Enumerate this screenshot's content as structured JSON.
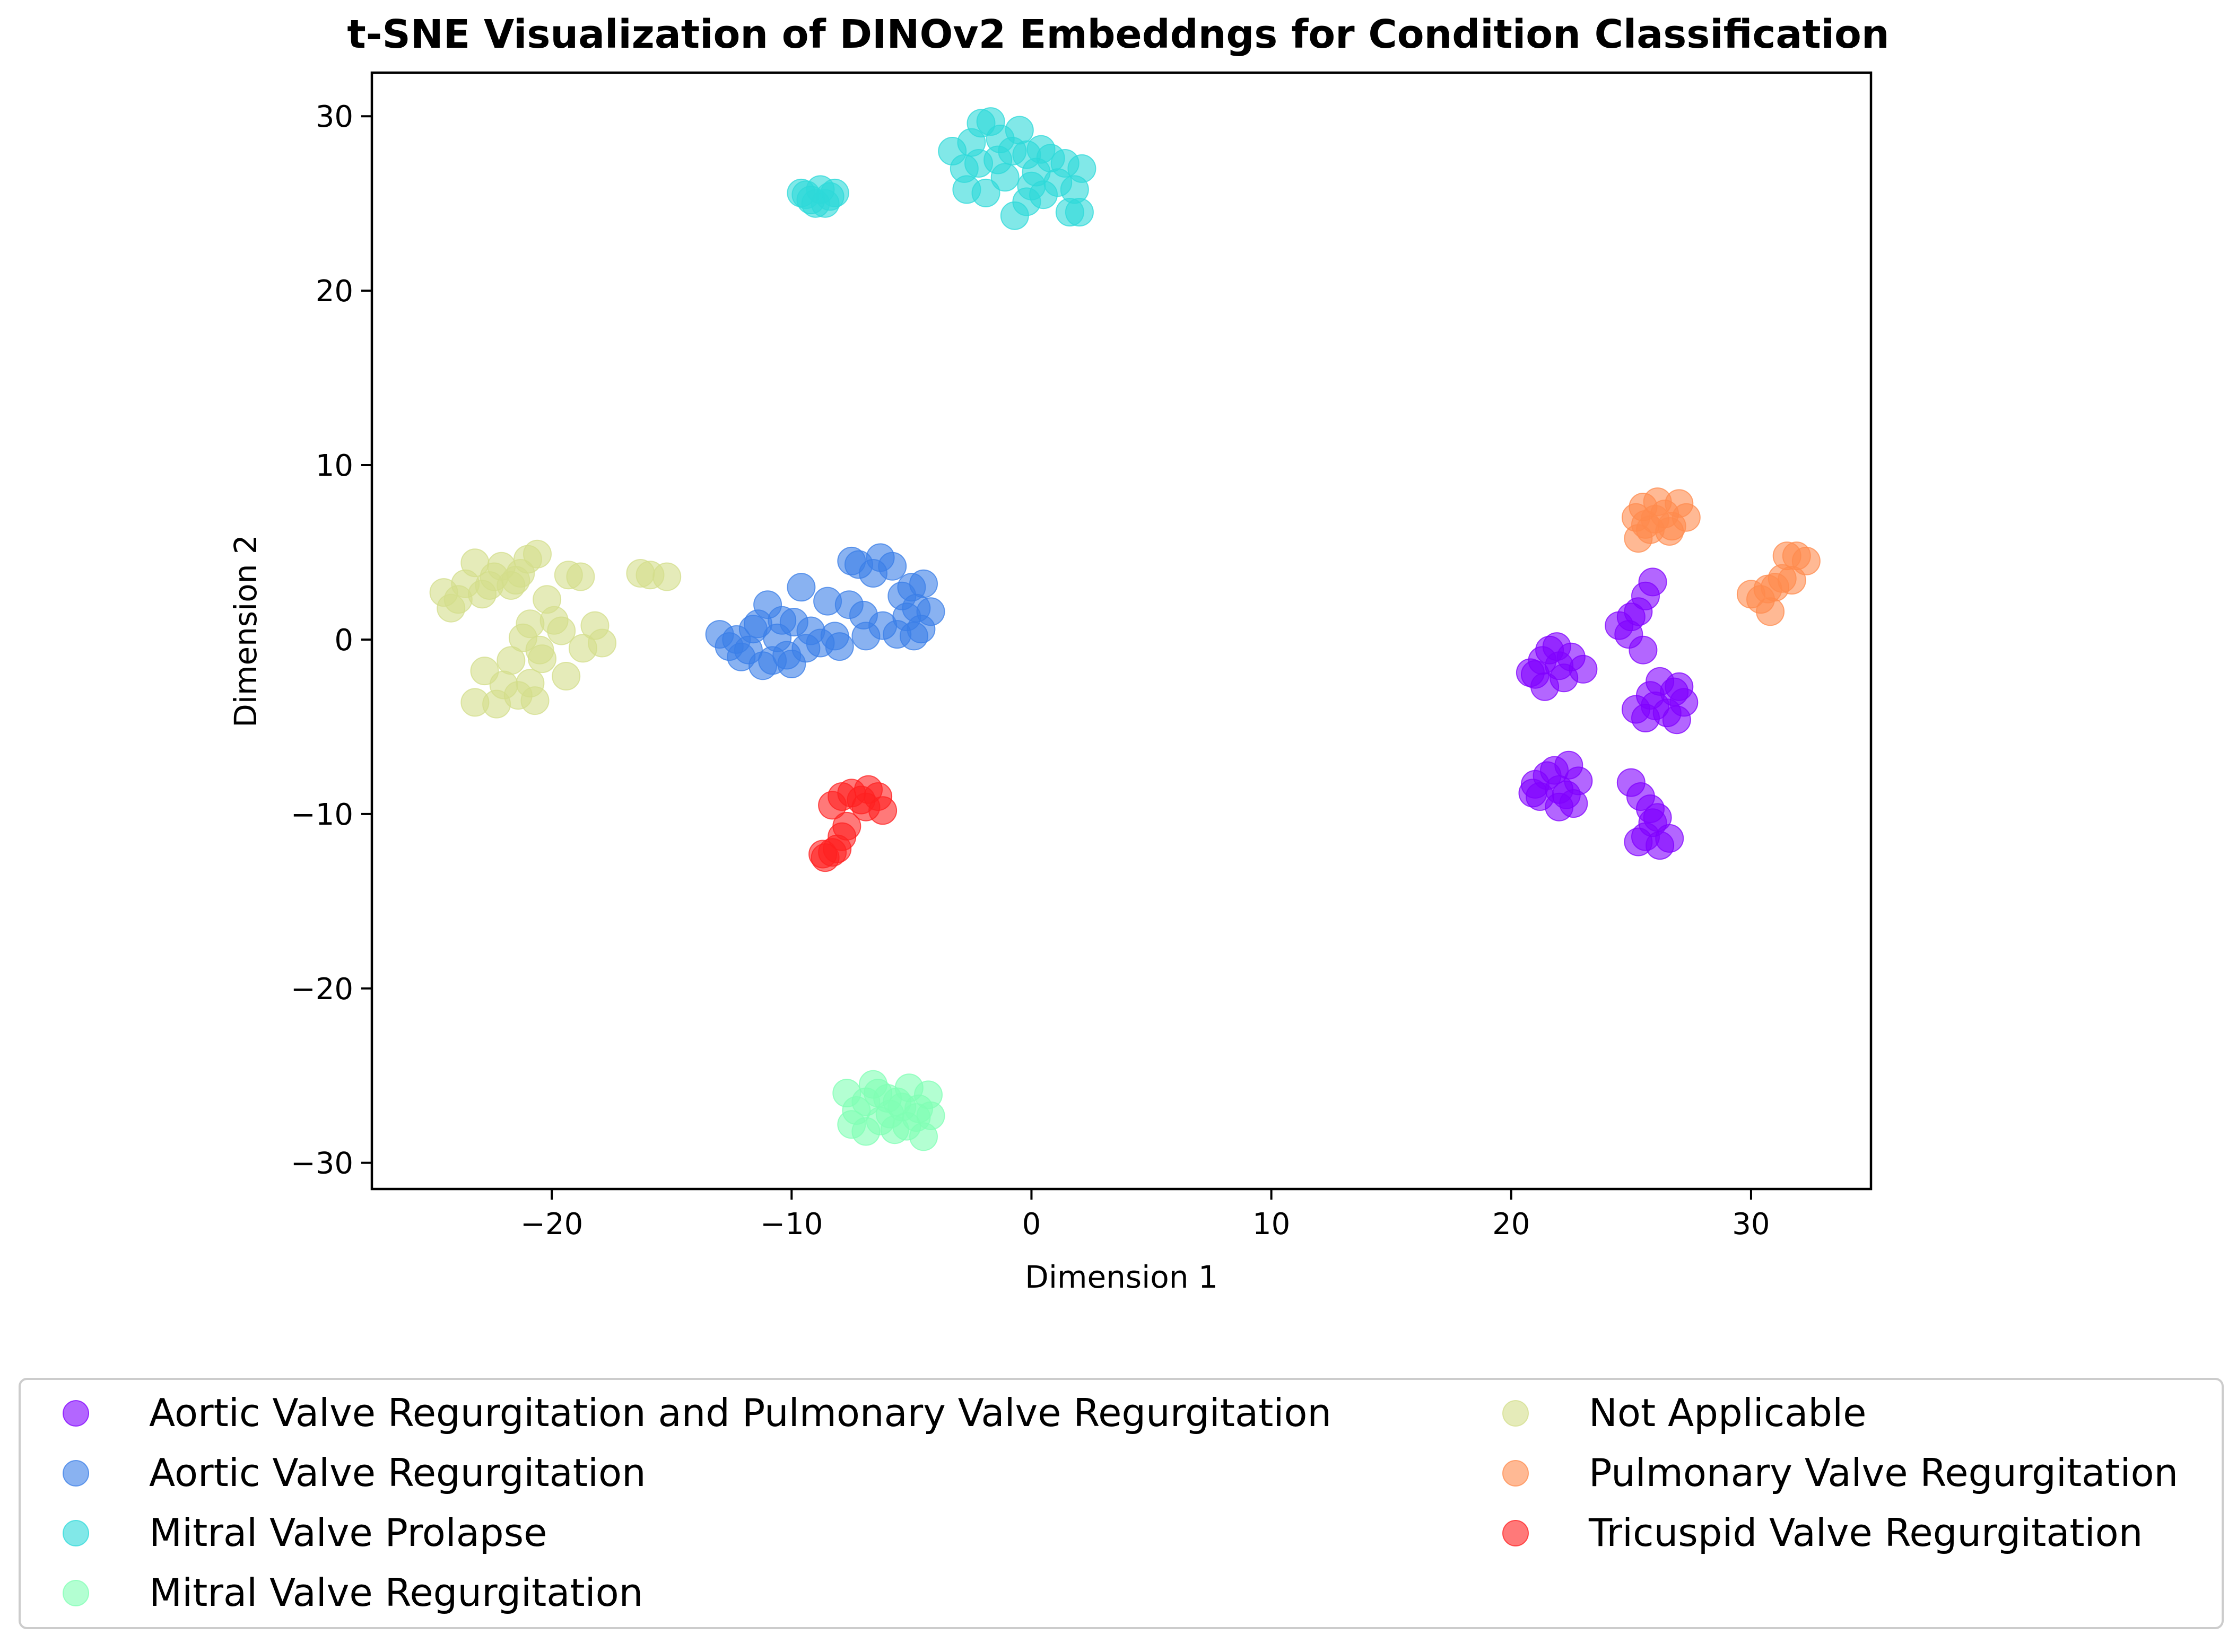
{
  "chart_data": {
    "type": "scatter",
    "title": "t-SNE Visualization of DINOv2 Embeddngs for Condition Classification",
    "xlabel": "Dimension 1",
    "ylabel": "Dimension 2",
    "xlim": [
      -27.5,
      35
    ],
    "ylim": [
      -31.5,
      32.5
    ],
    "xticks": [
      -20,
      -10,
      0,
      10,
      20,
      30
    ],
    "yticks": [
      -30,
      -20,
      -10,
      0,
      10,
      20,
      30
    ],
    "xtick_labels": [
      "−20",
      "−10",
      "0",
      "10",
      "20",
      "30"
    ],
    "ytick_labels": [
      "−30",
      "−20",
      "−10",
      "0",
      "10",
      "20",
      "30"
    ],
    "grid": false,
    "legend_position": "bottom",
    "series": [
      {
        "name": "Aortic Valve Regurgitation and Pulmonary Valve Regurgitation",
        "color": "#8000ff",
        "points": [
          [
            21.0,
            -2.0
          ],
          [
            21.3,
            -1.2
          ],
          [
            21.6,
            -0.6
          ],
          [
            22.0,
            -1.5
          ],
          [
            21.4,
            -2.7
          ],
          [
            22.2,
            -2.2
          ],
          [
            22.5,
            -1.0
          ],
          [
            23.0,
            -1.7
          ],
          [
            20.8,
            -1.9
          ],
          [
            21.9,
            -0.4
          ],
          [
            24.5,
            0.8
          ],
          [
            25.0,
            1.3
          ],
          [
            25.3,
            1.6
          ],
          [
            25.6,
            2.5
          ],
          [
            25.9,
            3.3
          ],
          [
            24.9,
            0.3
          ],
          [
            25.5,
            -0.6
          ],
          [
            25.2,
            -4.0
          ],
          [
            25.8,
            -3.2
          ],
          [
            26.2,
            -2.4
          ],
          [
            26.8,
            -3.0
          ],
          [
            27.2,
            -3.6
          ],
          [
            26.5,
            -4.2
          ],
          [
            25.6,
            -4.5
          ],
          [
            26.9,
            -4.6
          ],
          [
            26.0,
            -3.8
          ],
          [
            27.0,
            -2.7
          ],
          [
            21.0,
            -8.3
          ],
          [
            21.5,
            -7.8
          ],
          [
            22.0,
            -8.6
          ],
          [
            22.4,
            -7.2
          ],
          [
            22.8,
            -8.1
          ],
          [
            21.2,
            -9.0
          ],
          [
            22.0,
            -9.6
          ],
          [
            22.6,
            -9.4
          ],
          [
            21.8,
            -7.5
          ],
          [
            20.9,
            -8.8
          ],
          [
            22.3,
            -8.9
          ],
          [
            25.0,
            -8.2
          ],
          [
            25.4,
            -9.0
          ],
          [
            25.8,
            -9.7
          ],
          [
            26.1,
            -10.2
          ],
          [
            25.6,
            -11.3
          ],
          [
            26.2,
            -11.8
          ],
          [
            26.6,
            -11.4
          ],
          [
            25.3,
            -11.6
          ],
          [
            25.9,
            -10.5
          ]
        ]
      },
      {
        "name": "Aortic Valve Regurgitation",
        "color": "#3a7ee7",
        "points": [
          [
            -13.0,
            0.3
          ],
          [
            -12.6,
            -0.4
          ],
          [
            -12.1,
            -1.0
          ],
          [
            -11.6,
            0.6
          ],
          [
            -11.2,
            -1.5
          ],
          [
            -11.0,
            2.0
          ],
          [
            -10.6,
            0.1
          ],
          [
            -10.2,
            -0.9
          ],
          [
            -9.9,
            1.0
          ],
          [
            -9.6,
            3.0
          ],
          [
            -9.2,
            0.5
          ],
          [
            -8.8,
            -0.2
          ],
          [
            -8.5,
            2.2
          ],
          [
            -12.3,
            0.0
          ],
          [
            -11.8,
            -0.6
          ],
          [
            -10.8,
            -1.2
          ],
          [
            -10.0,
            -1.4
          ],
          [
            -9.4,
            -0.5
          ],
          [
            -8.2,
            0.2
          ],
          [
            -8.0,
            -0.4
          ],
          [
            -7.6,
            2.0
          ],
          [
            -11.4,
            0.9
          ],
          [
            -10.4,
            1.1
          ],
          [
            -7.5,
            4.5
          ],
          [
            -7.2,
            4.3
          ],
          [
            -6.3,
            4.7
          ],
          [
            -5.8,
            4.2
          ],
          [
            -6.6,
            3.8
          ],
          [
            -5.4,
            2.5
          ],
          [
            -5.0,
            3.0
          ],
          [
            -4.5,
            3.2
          ],
          [
            -4.8,
            1.8
          ],
          [
            -4.2,
            1.6
          ],
          [
            -4.6,
            0.6
          ],
          [
            -5.2,
            1.3
          ],
          [
            -5.6,
            0.3
          ],
          [
            -6.2,
            0.8
          ],
          [
            -6.9,
            0.2
          ],
          [
            -7.0,
            1.4
          ],
          [
            -4.9,
            0.2
          ]
        ]
      },
      {
        "name": "Mitral Valve Prolapse",
        "color": "#2dd9d9",
        "points": [
          [
            -9.6,
            25.6
          ],
          [
            -9.2,
            25.2
          ],
          [
            -8.8,
            25.8
          ],
          [
            -8.4,
            25.4
          ],
          [
            -9.0,
            25.0
          ],
          [
            -8.6,
            25.0
          ],
          [
            -9.4,
            25.5
          ],
          [
            -8.2,
            25.6
          ],
          [
            -3.3,
            28.0
          ],
          [
            -2.8,
            27.0
          ],
          [
            -2.5,
            28.5
          ],
          [
            -2.1,
            29.6
          ],
          [
            -1.7,
            29.7
          ],
          [
            -1.4,
            27.5
          ],
          [
            -1.1,
            26.5
          ],
          [
            -0.8,
            28.0
          ],
          [
            -0.5,
            29.2
          ],
          [
            -0.2,
            27.8
          ],
          [
            0.2,
            26.8
          ],
          [
            0.5,
            25.5
          ],
          [
            0.8,
            27.6
          ],
          [
            1.1,
            26.2
          ],
          [
            1.4,
            27.3
          ],
          [
            1.8,
            25.8
          ],
          [
            2.1,
            27.0
          ],
          [
            2.0,
            24.5
          ],
          [
            -2.7,
            25.8
          ],
          [
            -1.9,
            25.6
          ],
          [
            -0.7,
            24.3
          ],
          [
            -1.3,
            28.7
          ],
          [
            0.0,
            26.0
          ],
          [
            0.4,
            28.1
          ],
          [
            -0.2,
            25.1
          ],
          [
            1.6,
            24.5
          ],
          [
            -2.2,
            27.3
          ]
        ]
      },
      {
        "name": "Mitral Valve Regurgitation",
        "color": "#80ffb4",
        "points": [
          [
            -7.7,
            -26.0
          ],
          [
            -7.3,
            -27.0
          ],
          [
            -6.9,
            -26.5
          ],
          [
            -6.6,
            -25.5
          ],
          [
            -6.3,
            -27.6
          ],
          [
            -6.0,
            -26.3
          ],
          [
            -5.7,
            -28.1
          ],
          [
            -5.4,
            -26.8
          ],
          [
            -5.1,
            -25.7
          ],
          [
            -4.8,
            -27.4
          ],
          [
            -4.5,
            -28.5
          ],
          [
            -4.3,
            -26.1
          ],
          [
            -4.2,
            -27.3
          ],
          [
            -7.5,
            -27.8
          ],
          [
            -6.9,
            -28.2
          ],
          [
            -5.9,
            -27.2
          ],
          [
            -5.2,
            -27.9
          ],
          [
            -4.7,
            -26.9
          ],
          [
            -6.4,
            -26.0
          ],
          [
            -5.6,
            -26.5
          ]
        ]
      },
      {
        "name": "Not Applicable",
        "color": "#d3dd8b",
        "points": [
          [
            -24.5,
            2.7
          ],
          [
            -24.2,
            1.8
          ],
          [
            -23.6,
            3.2
          ],
          [
            -23.2,
            4.4
          ],
          [
            -22.9,
            2.6
          ],
          [
            -22.4,
            3.6
          ],
          [
            -22.1,
            4.2
          ],
          [
            -21.7,
            3.1
          ],
          [
            -21.3,
            3.8
          ],
          [
            -21.0,
            4.6
          ],
          [
            -20.6,
            4.9
          ],
          [
            -20.2,
            2.3
          ],
          [
            -23.9,
            2.3
          ],
          [
            -22.6,
            3.1
          ],
          [
            -21.5,
            3.4
          ],
          [
            -19.9,
            1.1
          ],
          [
            -19.6,
            0.5
          ],
          [
            -20.9,
            0.9
          ],
          [
            -21.2,
            0.1
          ],
          [
            -20.5,
            -0.6
          ],
          [
            -19.3,
            3.7
          ],
          [
            -18.8,
            3.6
          ],
          [
            -18.2,
            0.8
          ],
          [
            -17.9,
            -0.2
          ],
          [
            -18.7,
            -0.5
          ],
          [
            -19.4,
            -2.1
          ],
          [
            -20.4,
            -1.1
          ],
          [
            -20.9,
            -2.5
          ],
          [
            -21.4,
            -3.2
          ],
          [
            -22.0,
            -2.6
          ],
          [
            -22.3,
            -3.7
          ],
          [
            -23.2,
            -3.6
          ],
          [
            -22.8,
            -1.8
          ],
          [
            -21.7,
            -1.2
          ],
          [
            -20.7,
            -3.5
          ],
          [
            -16.3,
            3.8
          ],
          [
            -15.9,
            3.7
          ],
          [
            -15.2,
            3.6
          ]
        ]
      },
      {
        "name": "Pulmonary Valve Regurgitation",
        "color": "#ff8b4d",
        "points": [
          [
            25.2,
            7.0
          ],
          [
            25.5,
            7.6
          ],
          [
            25.8,
            6.3
          ],
          [
            26.1,
            7.9
          ],
          [
            26.4,
            7.2
          ],
          [
            26.7,
            6.5
          ],
          [
            27.0,
            7.8
          ],
          [
            27.3,
            7.0
          ],
          [
            25.3,
            5.8
          ],
          [
            26.0,
            6.9
          ],
          [
            26.6,
            6.2
          ],
          [
            25.6,
            6.6
          ],
          [
            30.0,
            2.6
          ],
          [
            30.4,
            2.3
          ],
          [
            30.8,
            1.6
          ],
          [
            31.0,
            3.0
          ],
          [
            31.3,
            3.5
          ],
          [
            31.5,
            4.8
          ],
          [
            31.9,
            4.8
          ],
          [
            32.3,
            4.5
          ],
          [
            31.7,
            3.4
          ],
          [
            30.7,
            2.9
          ]
        ]
      },
      {
        "name": "Tricuspid Valve Regurgitation",
        "color": "#ff2020",
        "points": [
          [
            -8.3,
            -9.5
          ],
          [
            -7.9,
            -9.0
          ],
          [
            -7.5,
            -8.8
          ],
          [
            -7.1,
            -9.2
          ],
          [
            -6.8,
            -8.6
          ],
          [
            -6.4,
            -9.0
          ],
          [
            -6.2,
            -9.8
          ],
          [
            -6.9,
            -9.6
          ],
          [
            -7.7,
            -10.7
          ],
          [
            -7.9,
            -11.3
          ],
          [
            -8.3,
            -12.2
          ],
          [
            -8.6,
            -12.5
          ],
          [
            -8.1,
            -12.0
          ],
          [
            -8.7,
            -12.3
          ]
        ]
      }
    ]
  }
}
